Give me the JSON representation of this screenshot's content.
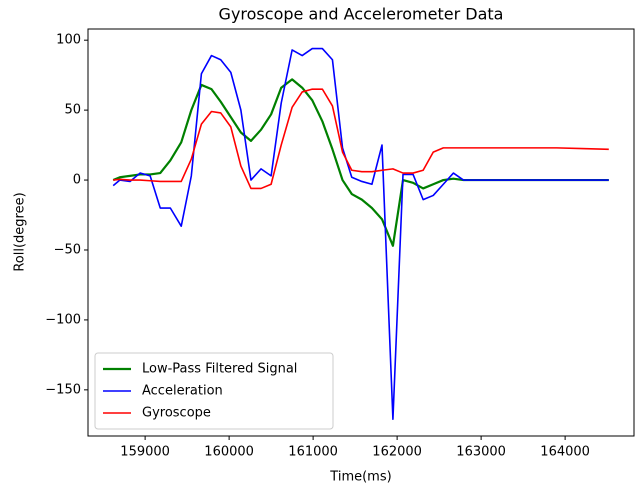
{
  "chart_data": {
    "type": "line",
    "title": "Gyroscope and Accelerometer Data",
    "xlabel": "Time(ms)",
    "ylabel": "Roll(degree)",
    "x": [
      158620,
      158700,
      158820,
      158940,
      159060,
      159180,
      159300,
      159430,
      159550,
      159670,
      159790,
      159900,
      160020,
      160140,
      160260,
      160380,
      160500,
      160620,
      160750,
      160870,
      160990,
      161110,
      161230,
      161350,
      161460,
      161580,
      161700,
      161820,
      161950,
      162070,
      162190,
      162310,
      162430,
      162550,
      162670,
      162790,
      163000,
      163300,
      163600,
      163900,
      164200,
      164520
    ],
    "series": [
      {
        "name": "Low-Pass Filtered Signal",
        "color": "#008000",
        "values": [
          0,
          2,
          3,
          4,
          4,
          5,
          14,
          27,
          50,
          68,
          65,
          56,
          45,
          34,
          28,
          36,
          47,
          66,
          72,
          66,
          57,
          42,
          22,
          0,
          -10,
          -14,
          -20,
          -28,
          -47,
          0,
          -2,
          -6,
          -3,
          0,
          1,
          0,
          0,
          0,
          0,
          0,
          0,
          0
        ]
      },
      {
        "name": "Acceleration",
        "color": "#0000ff",
        "values": [
          -4,
          0,
          -1,
          5,
          3,
          -20,
          -20,
          -33,
          3,
          76,
          89,
          86,
          77,
          50,
          0,
          8,
          3,
          55,
          93,
          89,
          94,
          94,
          86,
          23,
          2,
          -1,
          -3,
          25,
          -171,
          4,
          4,
          -14,
          -11,
          -3,
          5,
          0,
          0,
          0,
          0,
          0,
          0,
          0
        ]
      },
      {
        "name": "Gyroscope",
        "color": "#ff0000",
        "values": [
          0,
          0.5,
          0,
          0,
          -0.5,
          -1,
          -1,
          -1,
          15,
          40,
          49,
          48,
          38,
          10,
          -6,
          -6,
          -3,
          25,
          52,
          63,
          65,
          65,
          53,
          20,
          7,
          6,
          6,
          7,
          8,
          5,
          5,
          7,
          20,
          23,
          23,
          23,
          23,
          23,
          23,
          23,
          22.5,
          22
        ]
      }
    ],
    "xlim": [
      158320,
      164820
    ],
    "ylim": [
      -183,
      108
    ],
    "xticks": [
      159000,
      160000,
      161000,
      162000,
      163000,
      164000
    ],
    "yticks": [
      {
        "value": -150,
        "label": "−150"
      },
      {
        "value": -100,
        "label": "−100"
      },
      {
        "value": -50,
        "label": "−50"
      },
      0,
      50,
      100
    ],
    "legend": "lower left"
  }
}
